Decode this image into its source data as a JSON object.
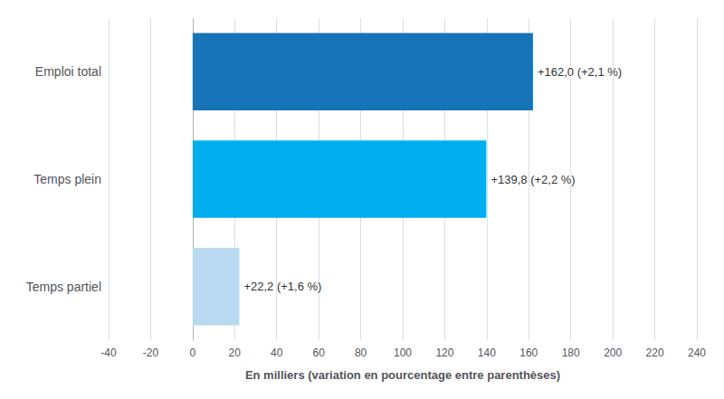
{
  "chart_data": {
    "type": "bar",
    "orientation": "horizontal",
    "categories": [
      "Temps partiel",
      "Temps plein",
      "Emploi total"
    ],
    "values": [
      22.2,
      139.8,
      162.0
    ],
    "value_labels": [
      "+22,2 (+1,6 %)",
      "+139,8 (+2,2 %)",
      "+162,0 (+2,1 %)"
    ],
    "colors": [
      "#b8d9f0",
      "#00aeef",
      "#1874b8"
    ],
    "xlabel": "En milliers (variation en pourcentage entre parenthèses)",
    "xlim": [
      -40,
      240
    ],
    "xticks": [
      -40,
      -20,
      0,
      20,
      40,
      60,
      80,
      100,
      120,
      140,
      160,
      180,
      200,
      220,
      240
    ],
    "grid": true,
    "data_labels": true
  }
}
